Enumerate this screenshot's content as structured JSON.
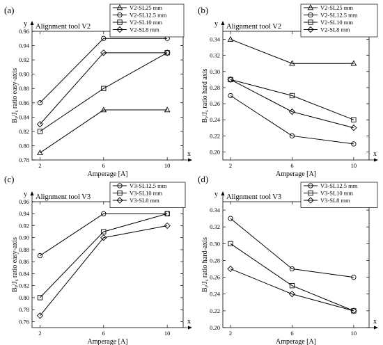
{
  "chart_data": [
    {
      "panel": "(a)",
      "type": "line",
      "title": "Alignment tool V2",
      "xlabel": "Amperage [A]",
      "ylabel": "Bᵣ/Jₛ ratio easy-axis",
      "ylabel_main": "B",
      "ylabel_sub1": "r",
      "ylabel_mid": "/J",
      "ylabel_sub2": "s",
      "ylabel_rest": " ratio easy-axis",
      "x_axis_letter": "x",
      "y_axis_letter": "y",
      "x": [
        2,
        6,
        10
      ],
      "xlim": [
        1.5,
        11
      ],
      "ylim": [
        0.78,
        0.96
      ],
      "yticks": [
        0.78,
        0.8,
        0.82,
        0.84,
        0.86,
        0.88,
        0.9,
        0.92,
        0.94,
        0.96
      ],
      "yticklabels": [
        "0.78",
        "0.80",
        "0.82",
        "0.84",
        "0.86",
        "0.88",
        "0.90",
        "0.92",
        "0.94",
        "0.96"
      ],
      "xticklabels": [
        "2",
        "6",
        "10"
      ],
      "series": [
        {
          "name": "V2-SL25 mm",
          "marker": "triangle",
          "values": [
            0.79,
            0.85,
            0.85
          ]
        },
        {
          "name": "V2-SL12.5 mm",
          "marker": "circle",
          "values": [
            0.86,
            0.95,
            0.95
          ]
        },
        {
          "name": "V2-SL10 mm",
          "marker": "square",
          "values": [
            0.82,
            0.88,
            0.93
          ]
        },
        {
          "name": "V2-SL8 mm",
          "marker": "diamond",
          "values": [
            0.83,
            0.93,
            0.93
          ]
        }
      ]
    },
    {
      "panel": "(b)",
      "type": "line",
      "title": "Alignment tool V2",
      "xlabel": "Amperage [A]",
      "ylabel_main": "B",
      "ylabel_sub1": "r",
      "ylabel_mid": "/J",
      "ylabel_sub2": "s",
      "ylabel_rest": " ratio hard axis",
      "x_axis_letter": "x",
      "y_axis_letter": "y",
      "x": [
        2,
        6,
        10
      ],
      "xlim": [
        1.5,
        11
      ],
      "ylim": [
        0.19,
        0.35
      ],
      "yticks": [
        0.2,
        0.22,
        0.24,
        0.26,
        0.28,
        0.3,
        0.32,
        0.34
      ],
      "yticklabels": [
        "0.20",
        "0.22",
        "0.24",
        "0.26",
        "0.28",
        "0.30",
        "0.32",
        "0.34"
      ],
      "xticklabels": [
        "2",
        "6",
        "10"
      ],
      "series": [
        {
          "name": "V2-SL25 mm",
          "marker": "triangle",
          "values": [
            0.34,
            0.31,
            0.31
          ]
        },
        {
          "name": "V2-SL12.5 mm",
          "marker": "circle",
          "values": [
            0.27,
            0.22,
            0.21
          ]
        },
        {
          "name": "V2-SL10 mm",
          "marker": "square",
          "values": [
            0.29,
            0.27,
            0.24
          ]
        },
        {
          "name": "V2-SL8 mm",
          "marker": "diamond",
          "values": [
            0.29,
            0.25,
            0.23
          ]
        }
      ]
    },
    {
      "panel": "(c)",
      "type": "line",
      "title": "Alignment tool V3",
      "xlabel": "Amperage [A]",
      "ylabel_main": "B",
      "ylabel_sub1": "r",
      "ylabel_mid": "/J",
      "ylabel_sub2": "s",
      "ylabel_rest": " ratio easy-axis",
      "x_axis_letter": "x",
      "y_axis_letter": "y",
      "x": [
        2,
        6,
        10
      ],
      "xlim": [
        1.5,
        11
      ],
      "ylim": [
        0.75,
        0.96
      ],
      "yticks": [
        0.76,
        0.78,
        0.8,
        0.82,
        0.84,
        0.86,
        0.88,
        0.9,
        0.92,
        0.94,
        0.96
      ],
      "yticklabels": [
        "0.76",
        "0.78",
        "0.80",
        "0.82",
        "0.84",
        "0.86",
        "0.88",
        "0.90",
        "0.92",
        "0.94",
        "0.96"
      ],
      "xticklabels": [
        "2",
        "6",
        "10"
      ],
      "series": [
        {
          "name": "V3-SL12.5 mm",
          "marker": "circle",
          "values": [
            0.87,
            0.94,
            0.94
          ]
        },
        {
          "name": "V3-SL10 mm",
          "marker": "square",
          "values": [
            0.8,
            0.91,
            0.94
          ]
        },
        {
          "name": "V3-SL8 mm",
          "marker": "diamond",
          "values": [
            0.77,
            0.9,
            0.92
          ]
        }
      ]
    },
    {
      "panel": "(d)",
      "type": "line",
      "title": "Alignment tool V3",
      "xlabel": "Amperage [A]",
      "ylabel_main": "B",
      "ylabel_sub1": "r",
      "ylabel_mid": "/J",
      "ylabel_sub2": "s",
      "ylabel_rest": " ratio hard-axis",
      "x_axis_letter": "x",
      "y_axis_letter": "y",
      "x": [
        2,
        6,
        10
      ],
      "xlim": [
        1.5,
        11
      ],
      "ylim": [
        0.2,
        0.35
      ],
      "yticks": [
        0.2,
        0.22,
        0.24,
        0.26,
        0.28,
        0.3,
        0.32,
        0.34
      ],
      "yticklabels": [
        "0.20",
        "0.22",
        "0.24",
        "0.26",
        "0.28",
        "0.30",
        "0.32",
        "0.34"
      ],
      "xticklabels": [
        "2",
        "6",
        "10"
      ],
      "series": [
        {
          "name": "V3-SL12.5 mm",
          "marker": "circle",
          "values": [
            0.33,
            0.27,
            0.26
          ]
        },
        {
          "name": "V3-SL10 mm",
          "marker": "square",
          "values": [
            0.3,
            0.25,
            0.22
          ]
        },
        {
          "name": "V3-SL8 mm",
          "marker": "diamond",
          "values": [
            0.27,
            0.24,
            0.22
          ]
        }
      ]
    }
  ]
}
